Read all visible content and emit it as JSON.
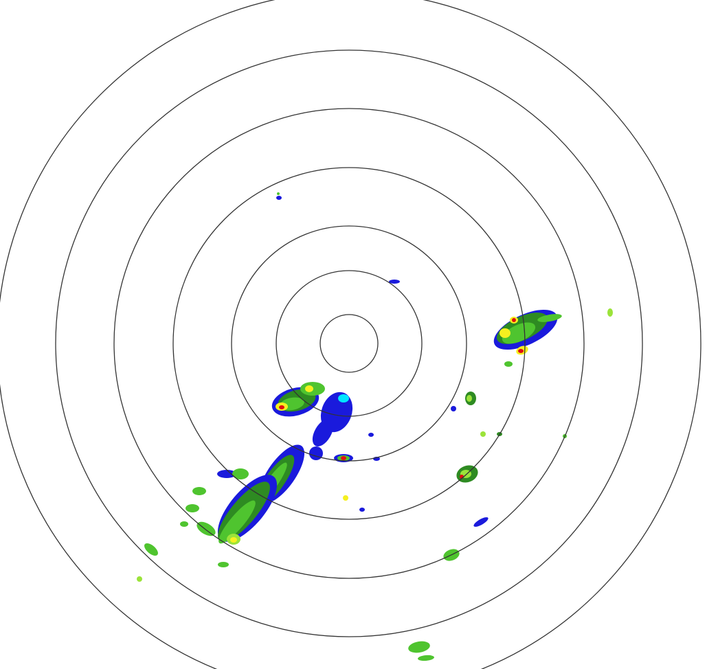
{
  "radar": {
    "ring_count": 7,
    "ring_color": "#333333",
    "background": "#ffffff",
    "echo_colors": {
      "light": "#1a1adc",
      "cyan": "#00e5ff",
      "dark_green": "#2e8b22",
      "green": "#4fc42f",
      "light_green": "#9be33a",
      "yellow": "#f5f020",
      "orange": "#ff9900",
      "red": "#e01010"
    }
  }
}
